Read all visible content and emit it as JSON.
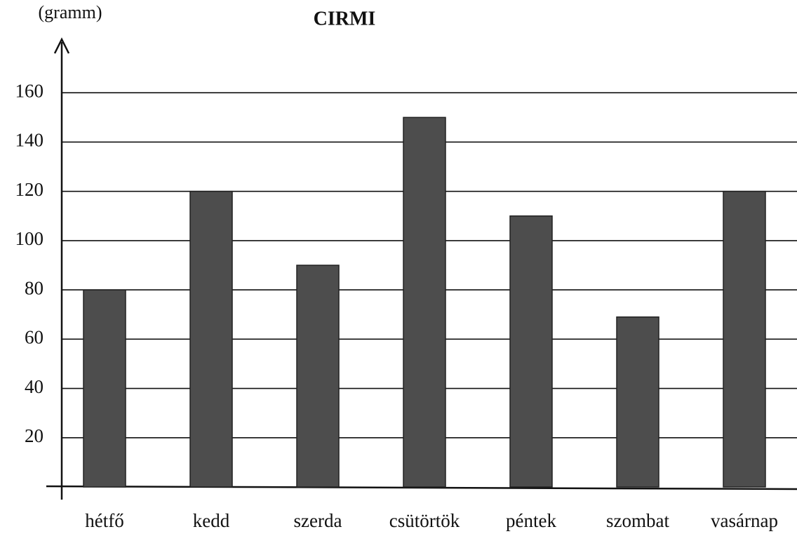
{
  "chart_data": {
    "type": "bar",
    "title": "CIRMI",
    "y_label": "(gramm)",
    "categories": [
      "hétfő",
      "kedd",
      "szerda",
      "csütörtök",
      "péntek",
      "szombat",
      "vasárnap"
    ],
    "values": [
      80,
      120,
      90,
      150,
      110,
      69,
      120
    ],
    "color": "#4d4d4d",
    "ylim": [
      0,
      180
    ],
    "yticks": [
      20,
      40,
      60,
      80,
      100,
      120,
      140,
      160
    ],
    "grid": true
  }
}
